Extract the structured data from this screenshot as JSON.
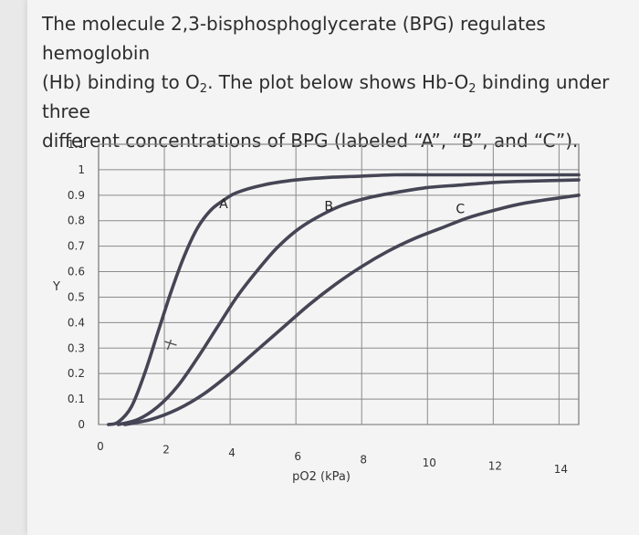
{
  "question": {
    "line1": "The molecule 2,3-bisphosphoglycerate (BPG) regulates hemoglobin",
    "line2a": "(Hb) binding to O",
    "line2sub": "2",
    "line2b": ". The plot below shows Hb-O",
    "line2sub2": "2",
    "line2c": " binding under three",
    "line3": "different concentrations of BPG (labeled “A”, “B”, and “C”)."
  },
  "chart_data": {
    "type": "line",
    "xlabel": "pO2 (kPa)",
    "ylabel": "Y",
    "xlim": [
      0,
      14.6
    ],
    "ylim": [
      0,
      1.1
    ],
    "x_ticks": [
      0,
      2,
      4,
      6,
      8,
      10,
      12,
      14
    ],
    "y_ticks": [
      0,
      0.1,
      0.2,
      0.3,
      0.4,
      0.5,
      0.6,
      0.7,
      0.8,
      0.9,
      1,
      1.1
    ],
    "y_tick_labels": [
      "0",
      "0.1",
      "0.2",
      "0.3",
      "0.4",
      "0.5",
      "0.6",
      "0.7",
      "0.8",
      "0.9",
      "1",
      "1.1"
    ],
    "grid": true,
    "series": [
      {
        "name": "A",
        "x": [
          0.3,
          0.6,
          1.0,
          1.4,
          1.8,
          2.2,
          2.6,
          3.0,
          3.4,
          3.8,
          4.2,
          5.0,
          6.0,
          7.0,
          8.0,
          9.0,
          10.0,
          12.0,
          14.6
        ],
        "y": [
          0.0,
          0.01,
          0.07,
          0.2,
          0.36,
          0.52,
          0.66,
          0.77,
          0.84,
          0.88,
          0.91,
          0.94,
          0.96,
          0.97,
          0.975,
          0.98,
          0.98,
          0.98,
          0.98
        ]
      },
      {
        "name": "B",
        "x": [
          0.6,
          1.2,
          1.8,
          2.4,
          3.0,
          3.6,
          4.2,
          4.8,
          5.4,
          6.0,
          6.6,
          7.4,
          8.2,
          9.0,
          10.0,
          11.0,
          12.0,
          13.0,
          14.6
        ],
        "y": [
          0.0,
          0.02,
          0.07,
          0.15,
          0.26,
          0.38,
          0.5,
          0.6,
          0.69,
          0.76,
          0.81,
          0.86,
          0.89,
          0.91,
          0.93,
          0.94,
          0.95,
          0.955,
          0.96
        ]
      },
      {
        "name": "C",
        "x": [
          0.8,
          1.6,
          2.4,
          3.2,
          4.0,
          4.8,
          5.6,
          6.4,
          7.2,
          8.0,
          8.8,
          9.6,
          10.4,
          11.2,
          12.0,
          13.0,
          14.6
        ],
        "y": [
          0.0,
          0.02,
          0.06,
          0.12,
          0.2,
          0.29,
          0.38,
          0.47,
          0.55,
          0.62,
          0.68,
          0.73,
          0.77,
          0.81,
          0.84,
          0.87,
          0.9
        ]
      }
    ],
    "annotations": [
      "A",
      "B",
      "C"
    ]
  }
}
